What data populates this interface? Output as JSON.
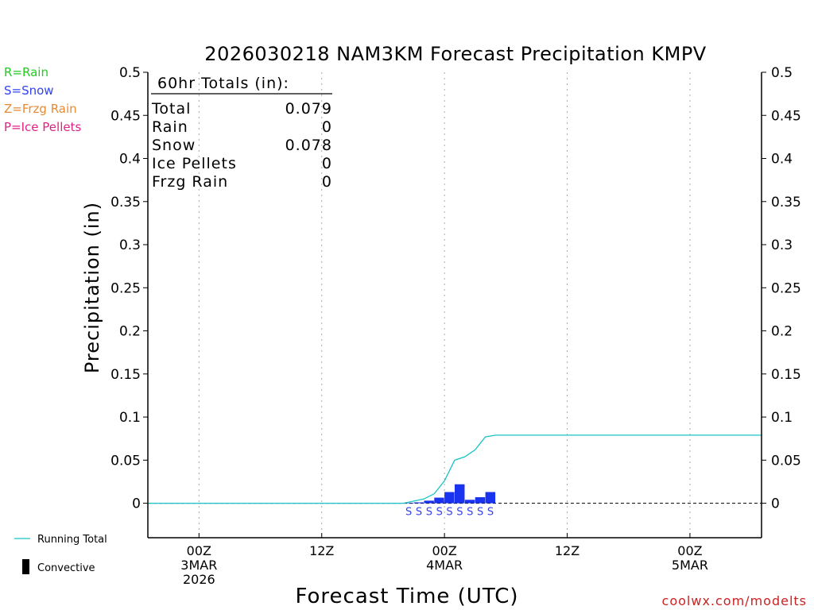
{
  "chart_data": {
    "type": "bar",
    "title": "2026030218 NAM3KM Forecast Precipitation KMPV",
    "ylabel": "Precipitation (in)",
    "xlabel": "Forecast Time (UTC)",
    "watermark": "coolwx.com/modelts",
    "ylim": [
      -0.04,
      0.5
    ],
    "xlim_hours": [
      -5,
      55
    ],
    "yticks": [
      {
        "v": 0.5,
        "l": "0.5"
      },
      {
        "v": 0.45,
        "l": "0.45"
      },
      {
        "v": 0.4,
        "l": "0.4"
      },
      {
        "v": 0.35,
        "l": "0.35"
      },
      {
        "v": 0.3,
        "l": "0.3"
      },
      {
        "v": 0.25,
        "l": "0.25"
      },
      {
        "v": 0.2,
        "l": "0.2"
      },
      {
        "v": 0.15,
        "l": "0.15"
      },
      {
        "v": 0.1,
        "l": "0.1"
      },
      {
        "v": 0.05,
        "l": "0.05"
      },
      {
        "v": 0,
        "l": "0"
      }
    ],
    "xticks": [
      {
        "h": 0,
        "lines": [
          "00Z",
          "3MAR",
          "2026"
        ]
      },
      {
        "h": 12,
        "lines": [
          "12Z"
        ]
      },
      {
        "h": 24,
        "lines": [
          "00Z",
          "4MAR"
        ]
      },
      {
        "h": 36,
        "lines": [
          "12Z"
        ]
      },
      {
        "h": 48,
        "lines": [
          "00Z",
          "5MAR"
        ]
      }
    ],
    "precip_type_legend": [
      {
        "label": "R=Rain",
        "color": "#22cc22"
      },
      {
        "label": "S=Snow",
        "color": "#3344ee"
      },
      {
        "label": "Z=Frzg Rain",
        "color": "#e88a33"
      },
      {
        "label": "P=Ice Pellets",
        "color": "#dd2288"
      }
    ],
    "series_legend": {
      "running_total": {
        "label": "Running Total",
        "color": "#19c4c4"
      },
      "convective": {
        "label": "Convective",
        "color": "#000000"
      }
    },
    "totals": {
      "header": "60hr Totals (in):",
      "rows": [
        {
          "label": "Total",
          "value": "0.079"
        },
        {
          "label": "Rain",
          "value": "0"
        },
        {
          "label": "Snow",
          "value": "0.078"
        },
        {
          "label": "Ice Pellets",
          "value": "0"
        },
        {
          "label": "Frzg Rain",
          "value": "0"
        }
      ]
    },
    "bars": {
      "name": "Hourly Snow",
      "color": "#1a33ee",
      "hours": [
        21,
        22,
        23,
        24,
        25,
        26,
        27,
        28,
        29
      ],
      "values": [
        0.0005,
        0.001,
        0.003,
        0.0065,
        0.013,
        0.022,
        0.004,
        0.007,
        0.013
      ],
      "type_codes": [
        "S",
        "S",
        "S",
        "S",
        "S",
        "S",
        "S",
        "S",
        "S"
      ]
    },
    "running_total": {
      "hours": [
        -5,
        20,
        22,
        23,
        24,
        25,
        26,
        27,
        28,
        29,
        30,
        55
      ],
      "values": [
        0,
        0,
        0.005,
        0.011,
        0.026,
        0.05,
        0.054,
        0.062,
        0.077,
        0.079,
        0.079,
        0.079
      ]
    },
    "colors": {
      "grid": "#aaaaaa",
      "axis": "#000000",
      "type_code": "#3344ee"
    }
  }
}
